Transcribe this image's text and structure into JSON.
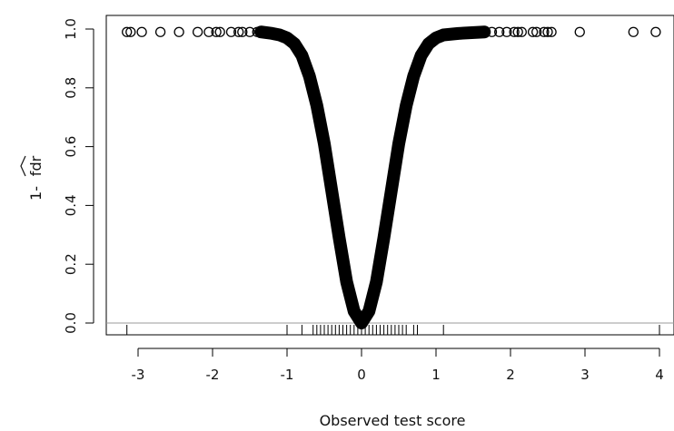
{
  "chart_data": {
    "type": "scatter",
    "title": "",
    "xlabel": "Observed test score",
    "ylabel": "1- fdr",
    "ylabel_prefix": "1-",
    "ylabel_symbol": "fdr",
    "xlim": [
      -3.3,
      4.2
    ],
    "ylim": [
      -0.02,
      1.04
    ],
    "x_ticks": [
      -3,
      -2,
      -1,
      0,
      1,
      2,
      3,
      4
    ],
    "x_tick_labels": [
      "-3",
      "-2",
      "-1",
      "0",
      "1",
      "2",
      "3",
      "4"
    ],
    "y_ticks": [
      0.0,
      0.2,
      0.4,
      0.6,
      0.8,
      1.0
    ],
    "y_tick_labels": [
      "0.0",
      "0.2",
      "0.4",
      "0.6",
      "0.8",
      "1.0"
    ],
    "grid": false,
    "marker": "open-circle",
    "point_color": "#000000",
    "reference_line_y": 0.0,
    "reference_line_color": "#999999",
    "outlier_points": [
      {
        "x": -3.15,
        "y": 0.99
      },
      {
        "x": -3.1,
        "y": 0.99
      },
      {
        "x": -2.95,
        "y": 0.99
      },
      {
        "x": -2.7,
        "y": 0.99
      },
      {
        "x": -2.45,
        "y": 0.99
      },
      {
        "x": -2.2,
        "y": 0.99
      },
      {
        "x": -2.05,
        "y": 0.99
      },
      {
        "x": -1.95,
        "y": 0.99
      },
      {
        "x": -1.9,
        "y": 0.99
      },
      {
        "x": -1.75,
        "y": 0.99
      },
      {
        "x": -1.65,
        "y": 0.99
      },
      {
        "x": -1.6,
        "y": 0.99
      },
      {
        "x": -1.5,
        "y": 0.99
      },
      {
        "x": -1.4,
        "y": 0.99
      },
      {
        "x": -1.35,
        "y": 0.99
      },
      {
        "x": 1.65,
        "y": 0.99
      },
      {
        "x": 1.75,
        "y": 0.99
      },
      {
        "x": 1.85,
        "y": 0.99
      },
      {
        "x": 1.95,
        "y": 0.99
      },
      {
        "x": 2.05,
        "y": 0.99
      },
      {
        "x": 2.1,
        "y": 0.99
      },
      {
        "x": 2.15,
        "y": 0.99
      },
      {
        "x": 2.3,
        "y": 0.99
      },
      {
        "x": 2.35,
        "y": 0.99
      },
      {
        "x": 2.45,
        "y": 0.99
      },
      {
        "x": 2.5,
        "y": 0.99
      },
      {
        "x": 2.55,
        "y": 0.99
      },
      {
        "x": 2.93,
        "y": 0.99
      },
      {
        "x": 3.65,
        "y": 0.99
      },
      {
        "x": 3.95,
        "y": 0.99
      }
    ],
    "curve_x_range": [
      -1.35,
      1.65
    ],
    "curve_points": [
      {
        "x": -1.35,
        "y": 0.99
      },
      {
        "x": -1.2,
        "y": 0.985
      },
      {
        "x": -1.1,
        "y": 0.98
      },
      {
        "x": -1.0,
        "y": 0.97
      },
      {
        "x": -0.9,
        "y": 0.95
      },
      {
        "x": -0.8,
        "y": 0.91
      },
      {
        "x": -0.7,
        "y": 0.84
      },
      {
        "x": -0.6,
        "y": 0.74
      },
      {
        "x": -0.5,
        "y": 0.61
      },
      {
        "x": -0.4,
        "y": 0.45
      },
      {
        "x": -0.3,
        "y": 0.29
      },
      {
        "x": -0.2,
        "y": 0.14
      },
      {
        "x": -0.1,
        "y": 0.04
      },
      {
        "x": 0.0,
        "y": 0.0
      },
      {
        "x": 0.1,
        "y": 0.04
      },
      {
        "x": 0.2,
        "y": 0.14
      },
      {
        "x": 0.3,
        "y": 0.29
      },
      {
        "x": 0.4,
        "y": 0.45
      },
      {
        "x": 0.5,
        "y": 0.61
      },
      {
        "x": 0.6,
        "y": 0.74
      },
      {
        "x": 0.7,
        "y": 0.84
      },
      {
        "x": 0.8,
        "y": 0.91
      },
      {
        "x": 0.9,
        "y": 0.95
      },
      {
        "x": 1.0,
        "y": 0.97
      },
      {
        "x": 1.1,
        "y": 0.98
      },
      {
        "x": 1.3,
        "y": 0.985
      },
      {
        "x": 1.65,
        "y": 0.99
      }
    ],
    "rug_x": [
      -3.15,
      -1.0,
      -0.8,
      -0.65,
      -0.6,
      -0.55,
      -0.5,
      -0.45,
      -0.4,
      -0.35,
      -0.3,
      -0.25,
      -0.2,
      -0.15,
      -0.1,
      -0.05,
      0.0,
      0.05,
      0.1,
      0.15,
      0.2,
      0.25,
      0.3,
      0.35,
      0.4,
      0.45,
      0.5,
      0.55,
      0.6,
      0.7,
      0.75,
      1.1,
      4.0
    ]
  }
}
